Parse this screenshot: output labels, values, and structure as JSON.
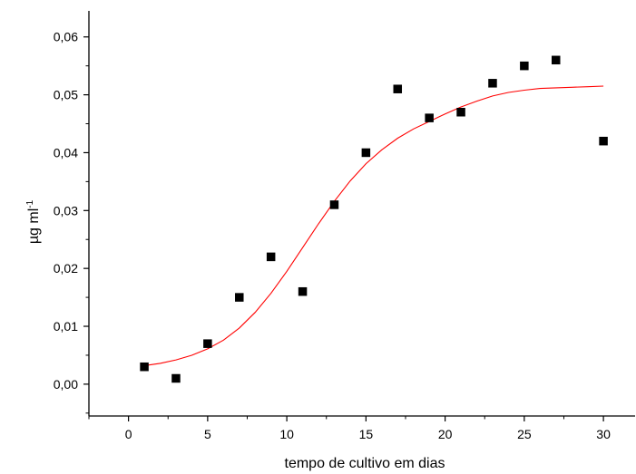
{
  "chart_data": {
    "type": "scatter",
    "title": "",
    "xlabel": "tempo de cultivo em dias",
    "ylabel": {
      "base": "µg ml",
      "superscript": "-1"
    },
    "xlim": [
      -2.5,
      32
    ],
    "ylim": [
      -0.0055,
      0.0645
    ],
    "x_ticks": [
      0,
      5,
      10,
      15,
      20,
      25,
      30
    ],
    "x_tick_labels": [
      "0",
      "5",
      "10",
      "15",
      "20",
      "25",
      "30"
    ],
    "y_ticks": [
      0.0,
      0.01,
      0.02,
      0.03,
      0.04,
      0.05,
      0.06
    ],
    "y_tick_labels": [
      "0,00",
      "0,01",
      "0,02",
      "0,03",
      "0,04",
      "0,05",
      "0,06"
    ],
    "grid": false,
    "legend": "none",
    "series": [
      {
        "kind": "points",
        "marker": "square",
        "color": "#000000",
        "x": [
          1,
          3,
          5,
          7,
          9,
          11,
          13,
          15,
          17,
          19,
          21,
          23,
          25,
          27,
          30
        ],
        "y": [
          0.003,
          0.001,
          0.007,
          0.015,
          0.022,
          0.016,
          0.031,
          0.04,
          0.051,
          0.046,
          0.047,
          0.052,
          0.055,
          0.056,
          0.042
        ]
      },
      {
        "kind": "fit-curve",
        "color": "#ff0000",
        "x": [
          1,
          2,
          3,
          4,
          5,
          6,
          7,
          8,
          9,
          10,
          11,
          12,
          13,
          14,
          15,
          16,
          17,
          18,
          19,
          20,
          21,
          22,
          23,
          24,
          25,
          26,
          27,
          28,
          29,
          30
        ],
        "y": [
          0.0032,
          0.0036,
          0.0042,
          0.005,
          0.0061,
          0.0076,
          0.0097,
          0.0124,
          0.0157,
          0.0195,
          0.0236,
          0.0277,
          0.0316,
          0.0351,
          0.0381,
          0.0405,
          0.0425,
          0.0441,
          0.0454,
          0.0467,
          0.0479,
          0.0489,
          0.0498,
          0.0504,
          0.0508,
          0.0511,
          0.0512,
          0.0513,
          0.0514,
          0.0515
        ]
      }
    ]
  }
}
